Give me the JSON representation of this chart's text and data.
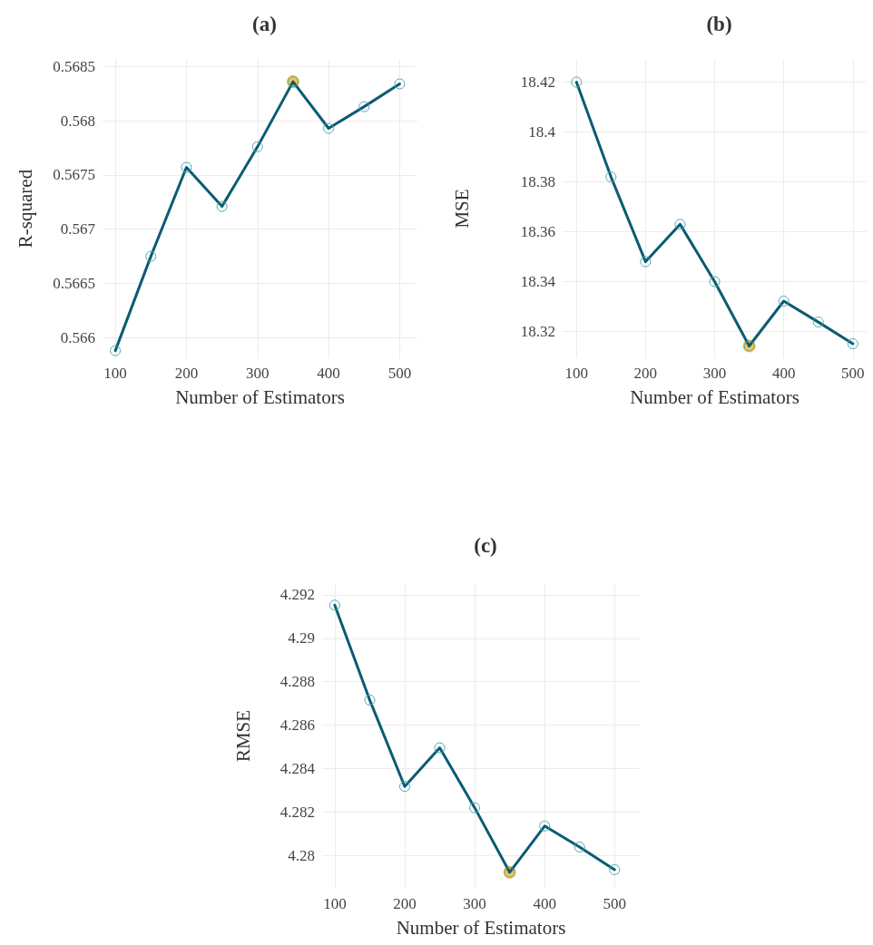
{
  "chart_data": [
    {
      "type": "line",
      "title": "(a)",
      "xlabel": "Number of Estimators",
      "ylabel": "R-squared",
      "x": [
        100,
        150,
        200,
        250,
        300,
        350,
        400,
        450,
        500
      ],
      "series": [
        {
          "color": "#0b5b73",
          "values": [
            0.56588,
            0.56675,
            0.56757,
            0.56721,
            0.56776,
            0.56836,
            0.56793,
            0.56813,
            0.56834
          ]
        },
        {
          "type": "scatter",
          "color": "#f5b731",
          "values": [
            null,
            null,
            null,
            null,
            null,
            0.56836,
            null,
            null,
            null
          ]
        }
      ],
      "xlim": [
        82,
        525
      ],
      "xticks": [
        100,
        200,
        300,
        400,
        500
      ],
      "ylim": [
        0.56581,
        0.56857
      ],
      "yticks": [
        0.566,
        0.5665,
        0.567,
        0.5675,
        0.568,
        0.5685
      ],
      "grid": true,
      "marker": "circle",
      "line_style": "solid"
    },
    {
      "type": "line",
      "title": "(b)",
      "xlabel": "Number of Estimators",
      "ylabel": "MSE",
      "x": [
        100,
        150,
        200,
        250,
        300,
        350,
        400,
        450,
        500
      ],
      "series": [
        {
          "color": "#0b5b73",
          "values": [
            18.42,
            18.382,
            18.348,
            18.363,
            18.34,
            18.3142,
            18.3322,
            18.3238,
            18.3151
          ]
        },
        {
          "type": "scatter",
          "color": "#f5b731",
          "values": [
            null,
            null,
            null,
            null,
            null,
            18.3142,
            null,
            null,
            null
          ]
        }
      ],
      "xlim": [
        80,
        520
      ],
      "xticks": [
        100,
        200,
        300,
        400,
        500
      ],
      "ylim": [
        18.3093,
        18.4293
      ],
      "yticks": [
        18.32,
        18.34,
        18.36,
        18.38,
        18.4,
        18.42
      ],
      "grid": true,
      "marker": "circle",
      "line_style": "solid"
    },
    {
      "type": "line",
      "title": "(c)",
      "xlabel": "Number of Estimators",
      "ylabel": "RMSE",
      "x": [
        100,
        150,
        200,
        250,
        300,
        350,
        400,
        450,
        500
      ],
      "series": [
        {
          "color": "#0b5b73",
          "values": [
            4.29153,
            4.28716,
            4.28318,
            4.28496,
            4.2822,
            4.27923,
            4.28136,
            4.28039,
            4.27935
          ]
        },
        {
          "type": "scatter",
          "color": "#f5b731",
          "values": [
            null,
            null,
            null,
            null,
            null,
            4.27923,
            null,
            null,
            null
          ]
        }
      ],
      "xlim": [
        82,
        536
      ],
      "xticks": [
        100,
        200,
        300,
        400,
        500
      ],
      "ylim": [
        4.27847,
        4.29254
      ],
      "yticks": [
        4.28,
        4.282,
        4.284,
        4.286,
        4.288,
        4.29,
        4.292
      ],
      "grid": true,
      "marker": "circle",
      "line_style": "solid"
    }
  ]
}
